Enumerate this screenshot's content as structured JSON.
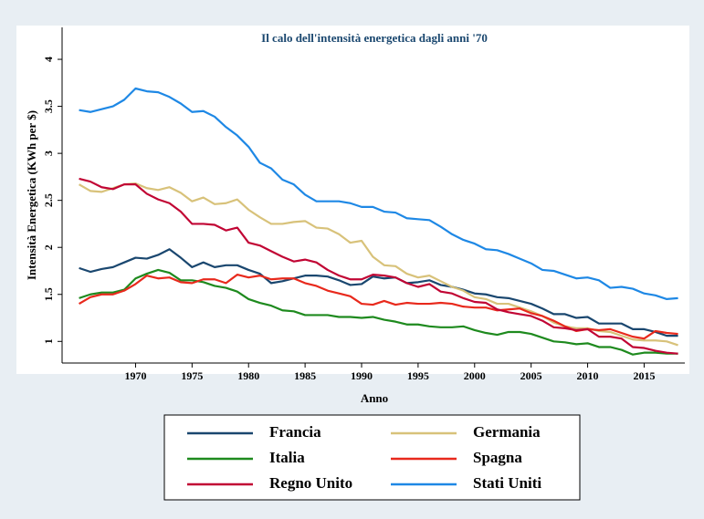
{
  "chart_data": {
    "type": "line",
    "title": "Il calo dell'intensità energetica dagli anni '70",
    "x_label": "Anno",
    "y_label": "Intensità Energetica (KWh per $)",
    "x": [
      1965,
      1966,
      1967,
      1968,
      1969,
      1970,
      1971,
      1972,
      1973,
      1974,
      1975,
      1976,
      1977,
      1978,
      1979,
      1980,
      1981,
      1982,
      1983,
      1984,
      1985,
      1986,
      1987,
      1988,
      1989,
      1990,
      1991,
      1992,
      1993,
      1994,
      1995,
      1996,
      1997,
      1998,
      1999,
      2000,
      2001,
      2002,
      2003,
      2004,
      2005,
      2006,
      2007,
      2008,
      2009,
      2010,
      2011,
      2012,
      2013,
      2014,
      2015,
      2016,
      2017,
      2018
    ],
    "xlim": [
      1963.5,
      2018.6
    ],
    "xticks": [
      1970,
      1975,
      1980,
      1985,
      1990,
      1995,
      2000,
      2005,
      2010,
      2015
    ],
    "ylim": [
      0.77,
      4.34
    ],
    "yticks": [
      1,
      1.5,
      2,
      2.5,
      3,
      3.5,
      4
    ],
    "series": [
      {
        "name": "Francia",
        "color": "#1a476f",
        "values": [
          1.78,
          1.74,
          1.77,
          1.79,
          1.84,
          1.89,
          1.88,
          1.92,
          1.98,
          1.89,
          1.79,
          1.84,
          1.79,
          1.81,
          1.81,
          1.76,
          1.72,
          1.62,
          1.64,
          1.67,
          1.7,
          1.7,
          1.69,
          1.65,
          1.6,
          1.61,
          1.69,
          1.67,
          1.68,
          1.62,
          1.63,
          1.65,
          1.6,
          1.58,
          1.55,
          1.51,
          1.5,
          1.47,
          1.46,
          1.43,
          1.4,
          1.35,
          1.29,
          1.29,
          1.25,
          1.26,
          1.19,
          1.19,
          1.19,
          1.13,
          1.13,
          1.1,
          1.06,
          1.06
        ]
      },
      {
        "name": "Germania",
        "color": "#d8c27a",
        "values": [
          2.67,
          2.6,
          2.59,
          2.63,
          2.67,
          2.68,
          2.63,
          2.61,
          2.64,
          2.58,
          2.49,
          2.53,
          2.46,
          2.47,
          2.51,
          2.4,
          2.32,
          2.25,
          2.25,
          2.27,
          2.28,
          2.21,
          2.2,
          2.14,
          2.05,
          2.07,
          1.9,
          1.81,
          1.8,
          1.72,
          1.68,
          1.7,
          1.64,
          1.58,
          1.54,
          1.47,
          1.45,
          1.4,
          1.4,
          1.36,
          1.32,
          1.27,
          1.2,
          1.16,
          1.14,
          1.14,
          1.11,
          1.1,
          1.06,
          1.02,
          1.01,
          1.01,
          1.0,
          0.96
        ]
      },
      {
        "name": "Italia",
        "color": "#1e8a1e",
        "values": [
          1.46,
          1.5,
          1.52,
          1.52,
          1.55,
          1.67,
          1.72,
          1.76,
          1.73,
          1.65,
          1.65,
          1.63,
          1.59,
          1.57,
          1.53,
          1.45,
          1.41,
          1.38,
          1.33,
          1.32,
          1.28,
          1.28,
          1.28,
          1.26,
          1.26,
          1.25,
          1.26,
          1.23,
          1.21,
          1.18,
          1.18,
          1.16,
          1.15,
          1.15,
          1.16,
          1.12,
          1.09,
          1.07,
          1.1,
          1.1,
          1.08,
          1.04,
          1.0,
          0.99,
          0.97,
          0.98,
          0.94,
          0.94,
          0.91,
          0.86,
          0.88,
          0.88,
          0.87,
          0.87
        ]
      },
      {
        "name": "Spagna",
        "color": "#e8291c",
        "values": [
          1.4,
          1.47,
          1.5,
          1.5,
          1.54,
          1.61,
          1.7,
          1.67,
          1.68,
          1.63,
          1.62,
          1.66,
          1.66,
          1.62,
          1.71,
          1.68,
          1.7,
          1.66,
          1.67,
          1.67,
          1.62,
          1.59,
          1.54,
          1.51,
          1.48,
          1.4,
          1.39,
          1.43,
          1.39,
          1.41,
          1.4,
          1.4,
          1.41,
          1.4,
          1.37,
          1.36,
          1.36,
          1.33,
          1.34,
          1.35,
          1.3,
          1.27,
          1.22,
          1.16,
          1.11,
          1.13,
          1.12,
          1.13,
          1.09,
          1.05,
          1.03,
          1.11,
          1.09,
          1.08
        ]
      },
      {
        "name": "Regno Unito",
        "color": "#c10534",
        "values": [
          2.73,
          2.7,
          2.64,
          2.62,
          2.67,
          2.67,
          2.57,
          2.51,
          2.47,
          2.38,
          2.25,
          2.25,
          2.24,
          2.18,
          2.21,
          2.05,
          2.02,
          1.96,
          1.9,
          1.85,
          1.87,
          1.84,
          1.76,
          1.7,
          1.66,
          1.66,
          1.71,
          1.7,
          1.68,
          1.62,
          1.58,
          1.61,
          1.53,
          1.51,
          1.46,
          1.42,
          1.41,
          1.34,
          1.31,
          1.29,
          1.27,
          1.22,
          1.15,
          1.14,
          1.12,
          1.13,
          1.05,
          1.05,
          1.03,
          0.94,
          0.93,
          0.9,
          0.88,
          0.87
        ]
      },
      {
        "name": "Stati Uniti",
        "color": "#1e88e5",
        "values": [
          3.46,
          3.44,
          3.47,
          3.5,
          3.57,
          3.69,
          3.66,
          3.65,
          3.6,
          3.53,
          3.44,
          3.45,
          3.39,
          3.28,
          3.19,
          3.07,
          2.9,
          2.84,
          2.72,
          2.67,
          2.56,
          2.49,
          2.49,
          2.49,
          2.47,
          2.43,
          2.43,
          2.38,
          2.37,
          2.31,
          2.3,
          2.29,
          2.22,
          2.14,
          2.08,
          2.04,
          1.98,
          1.97,
          1.93,
          1.88,
          1.83,
          1.76,
          1.75,
          1.71,
          1.67,
          1.68,
          1.65,
          1.57,
          1.58,
          1.56,
          1.51,
          1.49,
          1.45,
          1.46
        ]
      }
    ]
  }
}
